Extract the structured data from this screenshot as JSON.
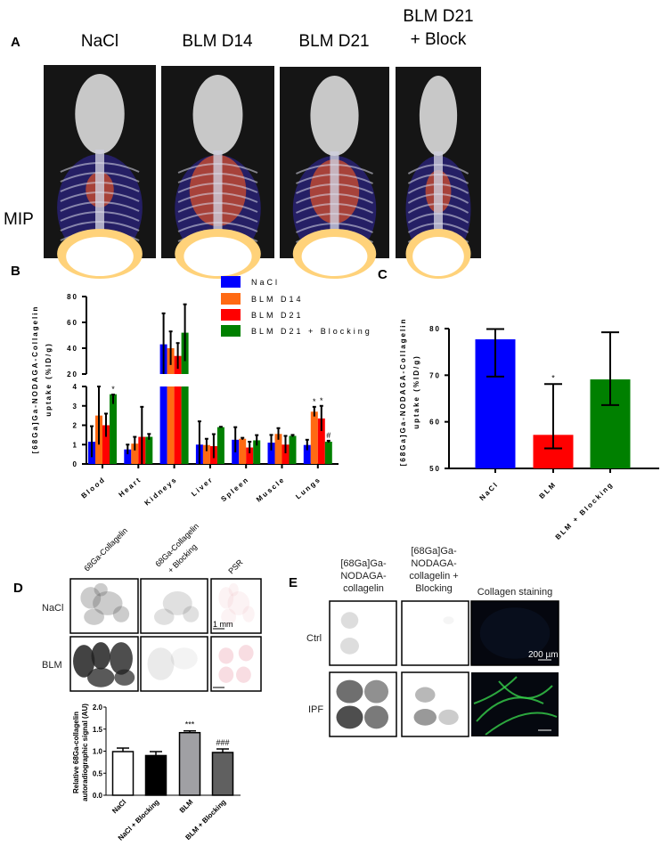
{
  "panel_a": {
    "letter": "A",
    "row_label": "MIP",
    "columns": [
      "NaCl",
      "BLM D14",
      "BLM D21"
    ],
    "block_title_line1": "BLM D21",
    "block_title_line2": "+ Block"
  },
  "panel_b": {
    "letter": "B"
  },
  "panel_c": {
    "letter": "C"
  },
  "panel_d": {
    "letter": "D",
    "columns": [
      "68Ga-Collagelin",
      "68Ga-Collagelin",
      "PSR"
    ],
    "column2_line2": "+ Blocking",
    "rows": [
      "NaCl",
      "BLM"
    ],
    "scale_bar": "1 mm"
  },
  "panel_e": {
    "letter": "E",
    "col1": [
      "[68Ga]Ga-",
      "NODAGA-",
      "collagelin"
    ],
    "col2": [
      "[68Ga]Ga-",
      "NODAGA-",
      "collagelin +",
      "Blocking"
    ],
    "col3": "Collagen staining",
    "rows": [
      "Ctrl",
      "IPF"
    ],
    "scale_bar": "200 µm"
  },
  "chart_data": [
    {
      "id": "B",
      "type": "bar",
      "title": "",
      "ylabel_line1": "[68Ga]Ga-NODAGA-Collagelin",
      "ylabel_line2": "uptake (%ID/g)",
      "broken_axis": true,
      "yticks_lower": [
        "0",
        "1",
        "2",
        "3",
        "4"
      ],
      "yticks_upper": [
        "20",
        "40",
        "60",
        "80"
      ],
      "ylim_lower": [
        0,
        4
      ],
      "ylim_upper": [
        20,
        80
      ],
      "categories": [
        "Blood",
        "Heart",
        "Kidneys",
        "Liver",
        "Spleen",
        "Muscle",
        "Lungs"
      ],
      "legend_position": "top-right",
      "series": [
        {
          "name": "NaCl",
          "color": "#0000ff",
          "values": [
            1.15,
            0.75,
            43,
            1.0,
            1.25,
            1.1,
            0.98
          ],
          "errors": [
            0.8,
            0.25,
            24,
            1.2,
            0.65,
            0.4,
            0.27
          ]
        },
        {
          "name": "BLM D14",
          "color": "#ff6a13",
          "values": [
            2.5,
            1.05,
            40,
            0.98,
            1.3,
            1.55,
            2.7
          ],
          "errors": [
            1.5,
            0.35,
            13,
            0.32,
            0.05,
            0.3,
            0.25
          ]
        },
        {
          "name": "BLM D21",
          "color": "#ff0000",
          "values": [
            2.0,
            1.4,
            34,
            0.92,
            0.85,
            1.0,
            2.35
          ],
          "errors": [
            0.6,
            1.55,
            10,
            0.62,
            0.3,
            0.45,
            0.65
          ]
        },
        {
          "name": "BLM D21 + Blocking",
          "color": "#008000",
          "values": [
            3.6,
            1.4,
            52,
            1.9,
            1.22,
            1.45,
            1.15
          ],
          "errors": [
            0.5,
            0.15,
            22,
            0.02,
            0.27,
            0.05,
            0.05
          ]
        }
      ],
      "annotations": [
        {
          "category": 0,
          "series": 3,
          "text": "*"
        },
        {
          "category": 6,
          "series": 1,
          "text": "*"
        },
        {
          "category": 6,
          "series": 2,
          "text": "*"
        },
        {
          "category": 6,
          "series": 3,
          "text": "#"
        }
      ]
    },
    {
      "id": "C",
      "type": "bar",
      "title": "",
      "ylabel_line1": "[68Ga]Ga-NODAGA-Collagelin",
      "ylabel_line2": "uptake (%ID/g)",
      "yticks": [
        "50",
        "60",
        "70",
        "80"
      ],
      "ylim": [
        50,
        80
      ],
      "categories": [
        "NaCl",
        "BLM",
        "BLM + Blocking"
      ],
      "colors": [
        "#0000ff",
        "#ff0000",
        "#008000"
      ],
      "values": [
        77.7,
        57.2,
        69.1
      ],
      "error_low": [
        69.7,
        54.3,
        63.6
      ],
      "error_high": [
        79.9,
        68.1,
        79.2
      ],
      "annotations": [
        {
          "category": 1,
          "text": "*"
        }
      ]
    },
    {
      "id": "D",
      "type": "bar",
      "title": "",
      "ylabel_line1": "Relative 68Ga-collagelin",
      "ylabel_line2": "autoradiographic signal (AU)",
      "yticks": [
        "0.0",
        "0.5",
        "1.0",
        "1.5",
        "2.0"
      ],
      "ylim": [
        0,
        2
      ],
      "categories": [
        "NaCl",
        "NaCl + Blocking",
        "BLM",
        "BLM + Blocking"
      ],
      "colors": [
        "#ffffff",
        "#000000",
        "#a0a0a4",
        "#606060"
      ],
      "values": [
        0.99,
        0.9,
        1.42,
        0.97
      ],
      "errors": [
        0.08,
        0.09,
        0.04,
        0.08
      ],
      "annotations": [
        {
          "category": 2,
          "text": "***"
        },
        {
          "category": 3,
          "text": "###"
        }
      ]
    }
  ]
}
